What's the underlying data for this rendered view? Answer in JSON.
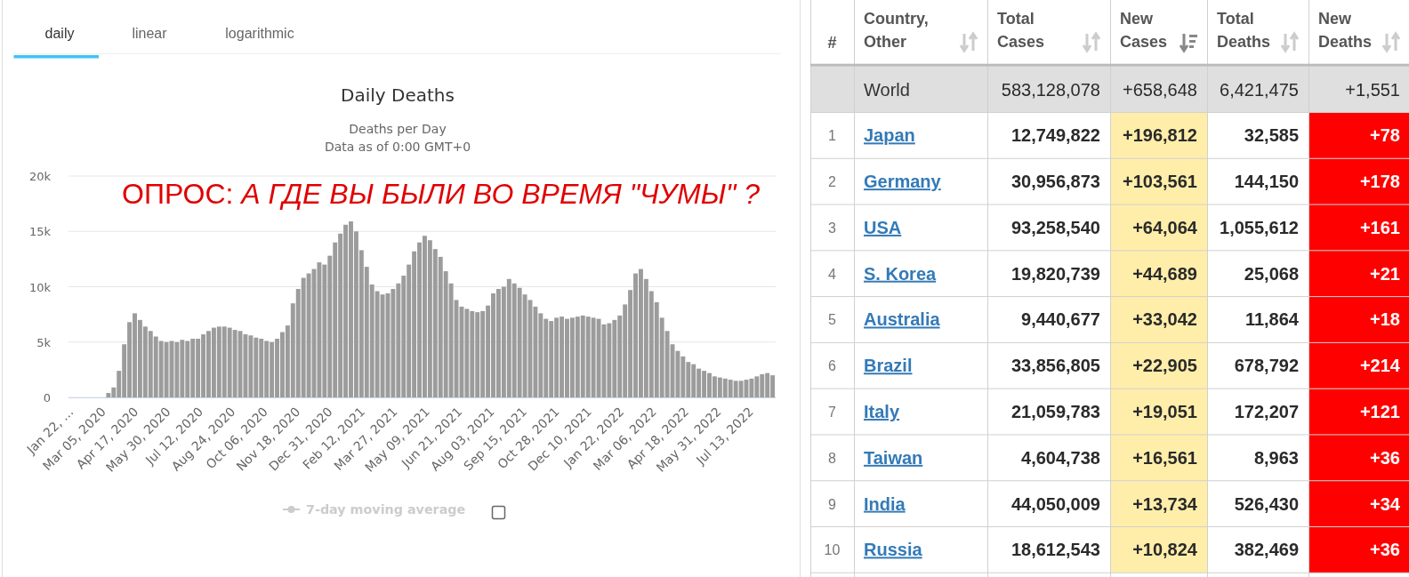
{
  "chart_data": [
    {
      "type": "bar",
      "title": "Daily Deaths",
      "subtitle": "Deaths per Day\nData as of 0:00 GMT+0",
      "annotations": [
        "daily",
        "linear",
        "logarithmic",
        "ОПРОС: А ГДЕ ВЫ БЫЛИ ВО ВРЕМЯ \"ЧУМЫ\" ?",
        "7-day moving average"
      ],
      "color": "#9c9c9c",
      "x": [
        "2020-01-22",
        "2020-01-29",
        "2020-02-05",
        "2020-02-12",
        "2020-02-19",
        "2020-02-26",
        "2020-03-04",
        "2020-03-11",
        "2020-03-18",
        "2020-03-25",
        "2020-04-01",
        "2020-04-08",
        "2020-04-15",
        "2020-04-22",
        "2020-04-29",
        "2020-05-06",
        "2020-05-13",
        "2020-05-20",
        "2020-05-27",
        "2020-06-03",
        "2020-06-10",
        "2020-06-17",
        "2020-06-24",
        "2020-07-01",
        "2020-07-08",
        "2020-07-15",
        "2020-07-22",
        "2020-07-29",
        "2020-08-05",
        "2020-08-12",
        "2020-08-19",
        "2020-08-26",
        "2020-09-02",
        "2020-09-09",
        "2020-09-16",
        "2020-09-23",
        "2020-09-30",
        "2020-10-07",
        "2020-10-14",
        "2020-10-21",
        "2020-10-28",
        "2020-11-04",
        "2020-11-11",
        "2020-11-18",
        "2020-11-25",
        "2020-12-02",
        "2020-12-09",
        "2020-12-16",
        "2020-12-23",
        "2020-12-30",
        "2021-01-06",
        "2021-01-13",
        "2021-01-20",
        "2021-01-27",
        "2021-02-03",
        "2021-02-10",
        "2021-02-17",
        "2021-02-24",
        "2021-03-03",
        "2021-03-10",
        "2021-03-17",
        "2021-03-24",
        "2021-03-31",
        "2021-04-07",
        "2021-04-14",
        "2021-04-21",
        "2021-04-28",
        "2021-05-05",
        "2021-05-12",
        "2021-05-19",
        "2021-05-26",
        "2021-06-02",
        "2021-06-09",
        "2021-06-16",
        "2021-06-23",
        "2021-06-30",
        "2021-07-07",
        "2021-07-14",
        "2021-07-21",
        "2021-07-28",
        "2021-08-04",
        "2021-08-11",
        "2021-08-18",
        "2021-08-25",
        "2021-09-01",
        "2021-09-08",
        "2021-09-15",
        "2021-09-22",
        "2021-09-29",
        "2021-10-06",
        "2021-10-13",
        "2021-10-20",
        "2021-10-27",
        "2021-11-03",
        "2021-11-10",
        "2021-11-17",
        "2021-11-24",
        "2021-12-01",
        "2021-12-08",
        "2021-12-15",
        "2021-12-22",
        "2021-12-29",
        "2022-01-05",
        "2022-01-12",
        "2022-01-19",
        "2022-01-26",
        "2022-02-02",
        "2022-02-09",
        "2022-02-16",
        "2022-02-23",
        "2022-03-02",
        "2022-03-09",
        "2022-03-16",
        "2022-03-23",
        "2022-03-30",
        "2022-04-06",
        "2022-04-13",
        "2022-04-20",
        "2022-04-27",
        "2022-05-04",
        "2022-05-11",
        "2022-05-18",
        "2022-05-25",
        "2022-06-01",
        "2022-06-08",
        "2022-06-15",
        "2022-06-22",
        "2022-06-29",
        "2022-07-06",
        "2022-07-13",
        "2022-07-20",
        "2022-07-27",
        "2022-08-03",
        "2022-08-10"
      ],
      "values": [
        0,
        0,
        0,
        0,
        0,
        0,
        0,
        400,
        900,
        2400,
        4800,
        6800,
        7600,
        7000,
        6400,
        6000,
        5500,
        5100,
        5000,
        5100,
        5000,
        5200,
        5100,
        5300,
        5300,
        5700,
        6000,
        6300,
        6400,
        6400,
        6300,
        6100,
        6000,
        5700,
        5600,
        5400,
        5300,
        5100,
        5000,
        5300,
        5900,
        6500,
        8500,
        9800,
        10800,
        11200,
        11600,
        12200,
        12000,
        12800,
        14000,
        14800,
        15600,
        15900,
        15000,
        13300,
        11800,
        10200,
        9600,
        9300,
        9400,
        9800,
        10300,
        11000,
        12000,
        13200,
        14000,
        14600,
        14200,
        13400,
        12700,
        11400,
        10300,
        8800,
        8200,
        8000,
        7800,
        7700,
        7800,
        8300,
        9400,
        9800,
        10000,
        10700,
        10300,
        9900,
        9300,
        8800,
        8200,
        7600,
        7100,
        6900,
        7200,
        7300,
        7100,
        7200,
        7300,
        7400,
        7300,
        7200,
        7100,
        6600,
        6700,
        7000,
        7400,
        8400,
        9700,
        11200,
        11600,
        10700,
        9600,
        8600,
        7200,
        6000,
        4800,
        4200,
        3700,
        3200,
        3000,
        2600,
        2400,
        2200,
        1900,
        1800,
        1700,
        1600,
        1500,
        1500,
        1600,
        1700,
        1900,
        2100,
        2200,
        2000
      ],
      "xlim": [
        "2020-01-18",
        "2022-08-14"
      ],
      "xticks": [
        {
          "value": "2020-01-22",
          "label": "Jan 22, …"
        },
        {
          "value": "2020-03-05",
          "label": "Mar 05, 2020"
        },
        {
          "value": "2020-04-17",
          "label": "Apr 17, 2020"
        },
        {
          "value": "2020-05-30",
          "label": "May 30, 2020"
        },
        {
          "value": "2020-07-12",
          "label": "Jul 12, 2020"
        },
        {
          "value": "2020-08-24",
          "label": "Aug 24, 2020"
        },
        {
          "value": "2020-10-06",
          "label": "Oct 06, 2020"
        },
        {
          "value": "2020-11-18",
          "label": "Nov 18, 2020"
        },
        {
          "value": "2020-12-31",
          "label": "Dec 31, 2020"
        },
        {
          "value": "2021-02-12",
          "label": "Feb 12, 2021"
        },
        {
          "value": "2021-03-27",
          "label": "Mar 27, 2021"
        },
        {
          "value": "2021-05-09",
          "label": "May 09, 2021"
        },
        {
          "value": "2021-06-21",
          "label": "Jun 21, 2021"
        },
        {
          "value": "2021-08-03",
          "label": "Aug 03, 2021"
        },
        {
          "value": "2021-09-15",
          "label": "Sep 15, 2021"
        },
        {
          "value": "2021-10-28",
          "label": "Oct 28, 2021"
        },
        {
          "value": "2021-12-10",
          "label": "Dec 10, 2021"
        },
        {
          "value": "2022-01-22",
          "label": "Jan 22, 2022"
        },
        {
          "value": "2022-03-06",
          "label": "Mar 06, 2022"
        },
        {
          "value": "2022-04-18",
          "label": "Apr 18, 2022"
        },
        {
          "value": "2022-05-31",
          "label": "May 31, 2022"
        },
        {
          "value": "2022-07-13",
          "label": "Jul 13, 2022"
        }
      ],
      "ylim": [
        0,
        20000
      ],
      "yticks": [
        0,
        {
          "value": 5000,
          "label": "5k"
        },
        {
          "value": 10000,
          "label": "10k"
        },
        {
          "value": 15000,
          "label": "15k"
        },
        {
          "value": 20000,
          "label": "20k"
        }
      ],
      "grid": "y"
    },
    {
      "type": "other",
      "ylabel": "Country, Other",
      "categories": [
        "World",
        "Japan",
        "Germany",
        "USA",
        "S. Korea",
        "Australia",
        "Brazil",
        "Italy",
        "Taiwan",
        "India",
        "Russia"
      ],
      "series": [
        {
          "name": "#",
          "values": [
            null,
            1,
            2,
            3,
            4,
            5,
            6,
            7,
            8,
            9,
            10
          ],
          "value_labels": [
            null,
            "1",
            "2",
            "3",
            "4",
            "5",
            "6",
            "7",
            "8",
            "9",
            "10"
          ]
        },
        {
          "name": "Total Cases",
          "values": [
            583128078,
            12749822,
            30956873,
            93258540,
            19820739,
            9440677,
            33856805,
            21059783,
            4604738,
            44050009,
            18612543
          ],
          "value_labels": [
            "583,128,078",
            "12,749,822",
            "30,956,873",
            "93,258,540",
            "19,820,739",
            "9,440,677",
            "33,856,805",
            "21,059,783",
            "4,604,738",
            "44,050,009",
            "18,612,543"
          ]
        },
        {
          "name": "New Cases",
          "color": "#ffeeaa",
          "values": [
            658648,
            196812,
            103561,
            64064,
            44689,
            33042,
            22905,
            19051,
            16561,
            13734,
            10824
          ],
          "value_labels": [
            "+658,648",
            "+196,812",
            "+103,561",
            "+64,064",
            "+44,689",
            "+33,042",
            "+22,905",
            "+19,051",
            "+16,561",
            "+13,734",
            "+10,824"
          ]
        },
        {
          "name": "Total Deaths",
          "values": [
            6421475,
            32585,
            144150,
            1055612,
            25068,
            11864,
            678792,
            172207,
            8963,
            526430,
            382469
          ],
          "value_labels": [
            "6,421,475",
            "32,585",
            "144,150",
            "1,055,612",
            "25,068",
            "11,864",
            "678,792",
            "172,207",
            "8,963",
            "526,430",
            "382,469"
          ]
        },
        {
          "name": "New Deaths",
          "color": "#ff0000",
          "values": [
            1551,
            78,
            178,
            161,
            21,
            18,
            214,
            121,
            36,
            34,
            36
          ],
          "value_labels": [
            "+1,551",
            "+78",
            "+178",
            "+161",
            "+21",
            "+18",
            "+214",
            "+121",
            "+36",
            "+34",
            "+36"
          ]
        }
      ]
    }
  ]
}
